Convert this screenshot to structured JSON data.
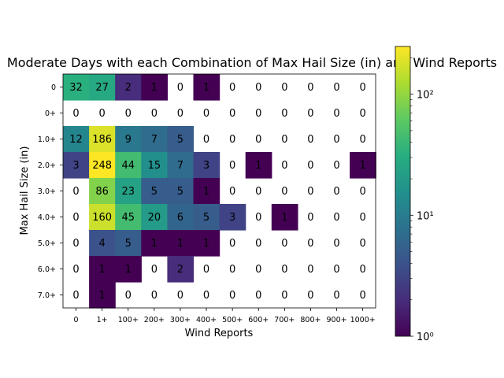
{
  "chart_data": {
    "type": "heatmap",
    "title": "Moderate Days with each Combination of Max Hail Size (in) and Wind Reports",
    "xlabel": "Wind Reports",
    "ylabel": "Max Hail Size (in)",
    "x_categories": [
      "0",
      "1+",
      "100+",
      "200+",
      "300+",
      "400+",
      "500+",
      "600+",
      "700+",
      "800+",
      "900+",
      "1000+"
    ],
    "y_categories": [
      "0",
      "0+",
      "1.0+",
      "2.0+",
      "3.0+",
      "4.0+",
      "5.0+",
      "6.0+",
      "7.0+"
    ],
    "values": [
      [
        32,
        27,
        2,
        1,
        0,
        1,
        0,
        0,
        0,
        0,
        0,
        0
      ],
      [
        0,
        0,
        0,
        0,
        0,
        0,
        0,
        0,
        0,
        0,
        0,
        0
      ],
      [
        12,
        186,
        9,
        7,
        5,
        0,
        0,
        0,
        0,
        0,
        0,
        0
      ],
      [
        3,
        248,
        44,
        15,
        7,
        3,
        0,
        1,
        0,
        0,
        0,
        1
      ],
      [
        0,
        86,
        23,
        5,
        5,
        1,
        0,
        0,
        0,
        0,
        0,
        0
      ],
      [
        0,
        160,
        45,
        20,
        6,
        5,
        3,
        0,
        1,
        0,
        0,
        0
      ],
      [
        0,
        4,
        5,
        1,
        1,
        1,
        0,
        0,
        0,
        0,
        0,
        0
      ],
      [
        0,
        1,
        1,
        0,
        2,
        0,
        0,
        0,
        0,
        0,
        0,
        0
      ],
      [
        0,
        1,
        0,
        0,
        0,
        0,
        0,
        0,
        0,
        0,
        0,
        0
      ]
    ],
    "colorbar": {
      "scale": "log",
      "colormap": "viridis",
      "range": [
        1,
        248
      ],
      "ticks": [
        1,
        10,
        100
      ],
      "tick_labels": [
        "10⁰",
        "10¹",
        "10²"
      ]
    },
    "zero_cells": "blank",
    "grid": false
  }
}
